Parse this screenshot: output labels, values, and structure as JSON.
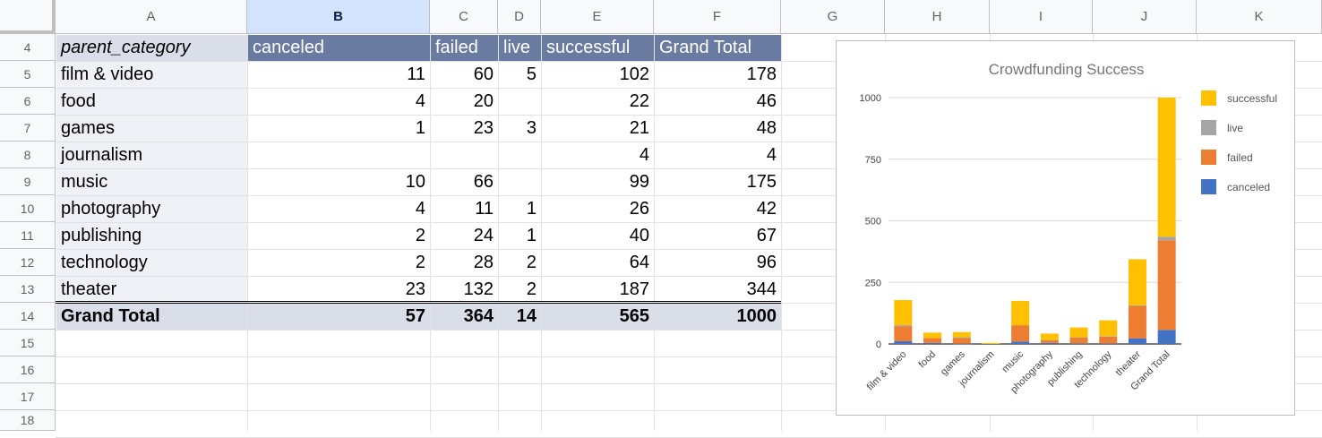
{
  "sheet": {
    "columns": [
      "A",
      "B",
      "C",
      "D",
      "E",
      "F",
      "G",
      "H",
      "I",
      "J",
      "K"
    ],
    "selected_column": "B",
    "rows": [
      "4",
      "5",
      "6",
      "7",
      "8",
      "9",
      "10",
      "11",
      "12",
      "13",
      "14",
      "15",
      "16",
      "17",
      "18"
    ]
  },
  "pivot": {
    "headers": [
      "parent_category",
      "canceled",
      "failed",
      "live",
      "successful",
      "Grand Total"
    ],
    "rows": [
      {
        "label": "film & video",
        "values": [
          "11",
          "60",
          "5",
          "102",
          "178"
        ]
      },
      {
        "label": "food",
        "values": [
          "4",
          "20",
          "",
          "22",
          "46"
        ]
      },
      {
        "label": "games",
        "values": [
          "1",
          "23",
          "3",
          "21",
          "48"
        ]
      },
      {
        "label": "journalism",
        "values": [
          "",
          "",
          "",
          "4",
          "4"
        ]
      },
      {
        "label": "music",
        "values": [
          "10",
          "66",
          "",
          "99",
          "175"
        ]
      },
      {
        "label": "photography",
        "values": [
          "4",
          "11",
          "1",
          "26",
          "42"
        ]
      },
      {
        "label": "publishing",
        "values": [
          "2",
          "24",
          "1",
          "40",
          "67"
        ]
      },
      {
        "label": "technology",
        "values": [
          "2",
          "28",
          "2",
          "64",
          "96"
        ]
      },
      {
        "label": "theater",
        "values": [
          "23",
          "132",
          "2",
          "187",
          "344"
        ]
      }
    ],
    "total": {
      "label": "Grand Total",
      "values": [
        "57",
        "364",
        "14",
        "565",
        "1000"
      ]
    }
  },
  "chart_data": {
    "type": "bar",
    "stacked": true,
    "title": "Crowdfunding Success",
    "categories": [
      "film & video",
      "food",
      "games",
      "journalism",
      "music",
      "photography",
      "publishing",
      "technology",
      "theater",
      "Grand Total"
    ],
    "series": [
      {
        "name": "canceled",
        "color": "#4472c4",
        "values": [
          11,
          4,
          1,
          0,
          10,
          4,
          2,
          2,
          23,
          57
        ]
      },
      {
        "name": "failed",
        "color": "#ed7d31",
        "values": [
          60,
          20,
          23,
          0,
          66,
          11,
          24,
          28,
          132,
          364
        ]
      },
      {
        "name": "live",
        "color": "#a5a5a5",
        "values": [
          5,
          0,
          3,
          0,
          0,
          1,
          1,
          2,
          2,
          14
        ]
      },
      {
        "name": "successful",
        "color": "#ffc000",
        "values": [
          102,
          22,
          21,
          4,
          99,
          26,
          40,
          64,
          187,
          565
        ]
      }
    ],
    "yticks": [
      "0",
      "250",
      "500",
      "750",
      "1000"
    ],
    "ylim": [
      0,
      1000
    ],
    "legend_order": [
      "successful",
      "live",
      "failed",
      "canceled"
    ],
    "legend_position": "right"
  }
}
